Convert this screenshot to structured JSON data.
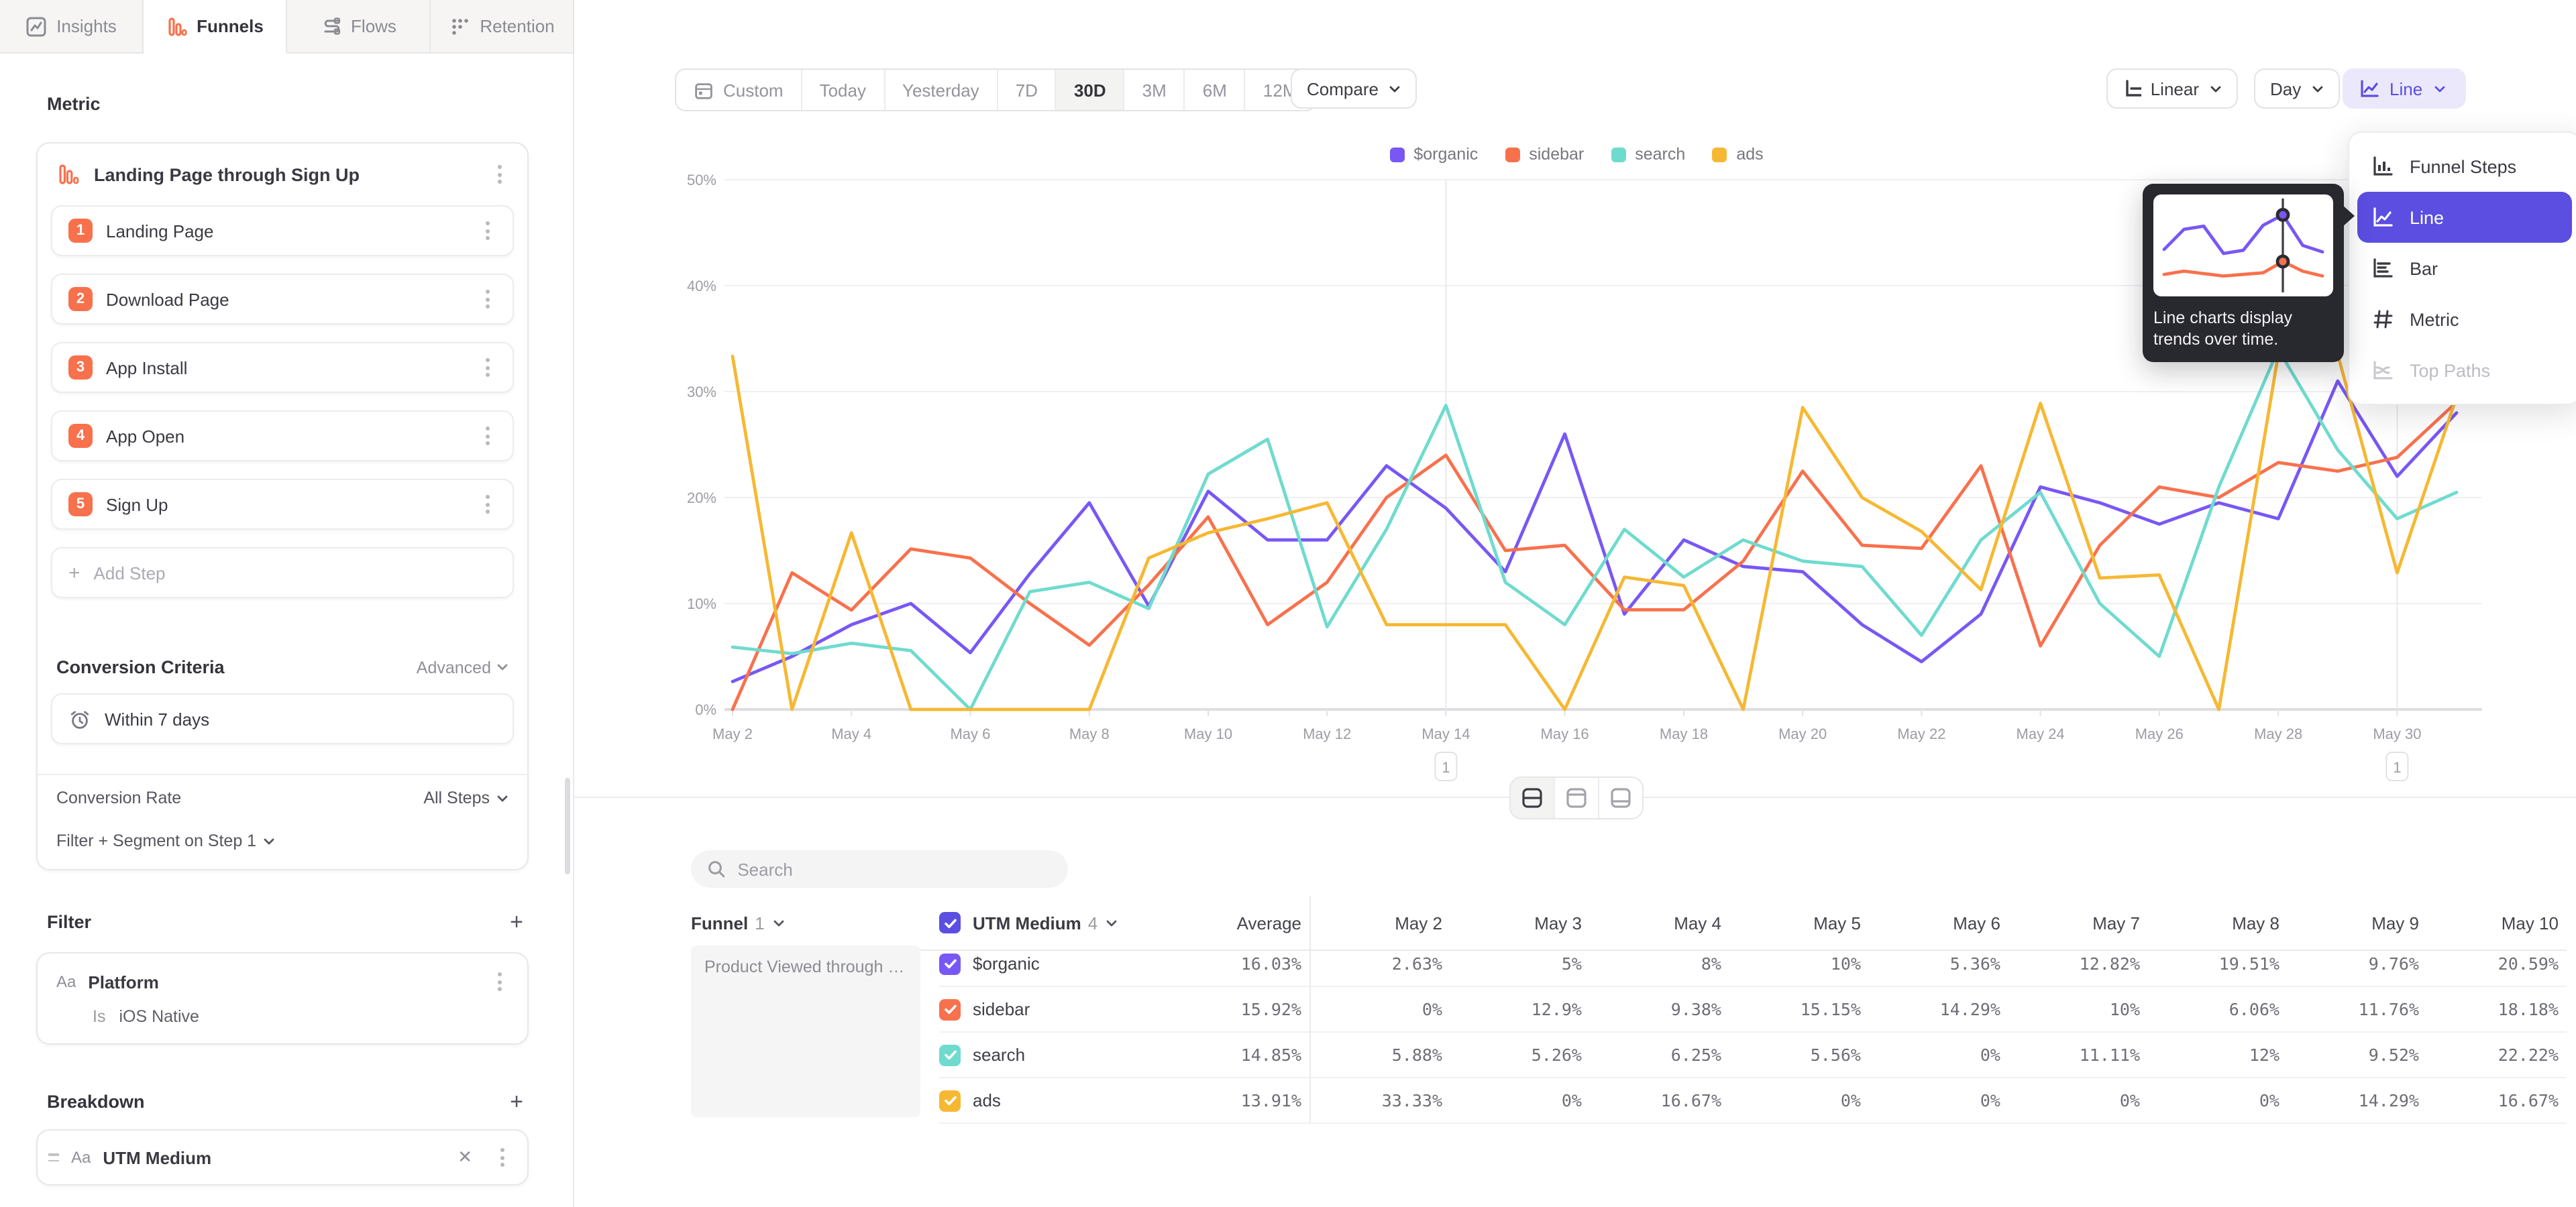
{
  "tabs": [
    {
      "label": "Insights",
      "active": false
    },
    {
      "label": "Funnels",
      "active": true
    },
    {
      "label": "Flows",
      "active": false
    },
    {
      "label": "Retention",
      "active": false
    }
  ],
  "sidebar": {
    "metric_label": "Metric",
    "metric": {
      "title": "Landing Page through Sign Up",
      "steps": [
        {
          "num": "1",
          "label": "Landing Page"
        },
        {
          "num": "2",
          "label": "Download Page"
        },
        {
          "num": "3",
          "label": "App Install"
        },
        {
          "num": "4",
          "label": "App Open"
        },
        {
          "num": "5",
          "label": "Sign Up"
        }
      ],
      "add_step_label": "Add Step",
      "conversion_criteria_label": "Conversion Criteria",
      "advanced_label": "Advanced",
      "window_label": "Within 7 days",
      "conversion_rate_label": "Conversion Rate",
      "conversion_rate_value": "All Steps",
      "filter_segment_label": "Filter + Segment on Step 1"
    },
    "filter": {
      "heading": "Filter",
      "card": {
        "type_badge": "Aa",
        "name": "Platform",
        "operator": "Is",
        "value": "iOS Native"
      }
    },
    "breakdown": {
      "heading": "Breakdown",
      "card": {
        "type_badge": "Aa",
        "name": "UTM Medium"
      }
    }
  },
  "toolbar": {
    "ranges": [
      "Custom",
      "Today",
      "Yesterday",
      "7D",
      "30D",
      "3M",
      "6M",
      "12M"
    ],
    "active_range": "30D",
    "compare_label": "Compare",
    "scale_label": "Linear",
    "granularity_label": "Day",
    "view_label": "Line"
  },
  "chart_data": {
    "type": "line",
    "title": "",
    "xlabel": "",
    "ylabel": "",
    "ylim": [
      0,
      50
    ],
    "y_tick_step": 10,
    "y_tick_suffix": "%",
    "grid": true,
    "legend_position": "top",
    "tick_every": 2,
    "x": [
      "May 2",
      "May 3",
      "May 4",
      "May 5",
      "May 6",
      "May 7",
      "May 8",
      "May 9",
      "May 10",
      "May 11",
      "May 12",
      "May 13",
      "May 14",
      "May 15",
      "May 16",
      "May 17",
      "May 18",
      "May 19",
      "May 20",
      "May 21",
      "May 22",
      "May 23",
      "May 24",
      "May 25",
      "May 26",
      "May 27",
      "May 28",
      "May 29",
      "May 30",
      "May 31"
    ],
    "series": [
      {
        "name": "$organic",
        "color": "#7857F5",
        "values": [
          2.63,
          5,
          8,
          10,
          5.36,
          12.82,
          19.51,
          9.76,
          20.59,
          16,
          16,
          23,
          19,
          13,
          26,
          9,
          16,
          13.5,
          13,
          8,
          4.5,
          9,
          21,
          19.5,
          17.5,
          19.5,
          18,
          31,
          22,
          28
        ]
      },
      {
        "name": "sidebar",
        "color": "#F8714D",
        "values": [
          0,
          12.9,
          9.38,
          15.15,
          14.29,
          10,
          6.06,
          11.76,
          18.18,
          8,
          12,
          20,
          24,
          15,
          15.5,
          9.4,
          9.4,
          14,
          22.5,
          15.5,
          15.2,
          23,
          6,
          15.5,
          21,
          20,
          23.3,
          22.5,
          23.8,
          29
        ]
      },
      {
        "name": "search",
        "color": "#6FDBCE",
        "values": [
          5.88,
          5.26,
          6.25,
          5.56,
          0,
          11.11,
          12,
          9.52,
          22.22,
          25.5,
          7.8,
          17,
          28.7,
          12,
          8,
          17,
          12.5,
          16,
          14,
          13.5,
          7,
          16,
          20.5,
          10,
          5,
          21,
          34,
          24.5,
          18,
          20.5
        ]
      },
      {
        "name": "ads",
        "color": "#F6B833",
        "values": [
          33.33,
          0,
          16.67,
          0,
          0,
          0,
          0,
          14.29,
          16.67,
          18,
          19.5,
          8,
          8,
          8,
          0,
          12.5,
          11.7,
          0,
          28.5,
          20,
          16.8,
          11.3,
          28.9,
          12.4,
          12.7,
          0,
          33.5,
          33.5,
          12.9,
          29.5
        ]
      }
    ],
    "annotations": [
      {
        "index": 12,
        "label": "1"
      },
      {
        "index": 28,
        "label": "1"
      }
    ]
  },
  "view_menu": {
    "items": [
      {
        "label": "Funnel Steps",
        "icon": "funnel-steps-icon",
        "state": "normal"
      },
      {
        "label": "Line",
        "icon": "line-icon",
        "state": "selected"
      },
      {
        "label": "Bar",
        "icon": "bar-icon",
        "state": "normal"
      },
      {
        "label": "Metric",
        "icon": "metric-icon",
        "state": "normal"
      },
      {
        "label": "Top Paths",
        "icon": "top-paths-icon",
        "state": "disabled"
      }
    ]
  },
  "tooltip": {
    "text": "Line charts display trends over time.",
    "mini": {
      "purple": [
        55,
        30,
        26,
        60,
        56,
        25,
        12,
        50,
        58
      ],
      "orange": [
        86,
        82,
        85,
        88,
        86,
        84,
        70,
        82,
        88
      ],
      "crosshair_index": 6
    }
  },
  "layout_toggles": [
    {
      "name": "split-view",
      "active": true
    },
    {
      "name": "chart-top-view",
      "active": false
    },
    {
      "name": "chart-bottom-view",
      "active": false
    }
  ],
  "table": {
    "search_placeholder": "Search",
    "funnel_col": {
      "label": "Funnel",
      "count": "1"
    },
    "breakdown_col": {
      "label": "UTM Medium",
      "count": "4"
    },
    "funnel_cell": "Product Viewed through P...",
    "columns": [
      "Average",
      "May 2",
      "May 3",
      "May 4",
      "May 5",
      "May 6",
      "May 7",
      "May 8",
      "May 9",
      "May 10"
    ],
    "rows": [
      {
        "name": "$organic",
        "color": "#7857F5",
        "values": [
          "16.03%",
          "2.63%",
          "5%",
          "8%",
          "10%",
          "5.36%",
          "12.82%",
          "19.51%",
          "9.76%",
          "20.59%"
        ]
      },
      {
        "name": "sidebar",
        "color": "#F8714D",
        "values": [
          "15.92%",
          "0%",
          "12.9%",
          "9.38%",
          "15.15%",
          "14.29%",
          "10%",
          "6.06%",
          "11.76%",
          "18.18%"
        ]
      },
      {
        "name": "search",
        "color": "#6FDBCE",
        "values": [
          "14.85%",
          "5.88%",
          "5.26%",
          "6.25%",
          "5.56%",
          "0%",
          "11.11%",
          "12%",
          "9.52%",
          "22.22%"
        ]
      },
      {
        "name": "ads",
        "color": "#F6B833",
        "values": [
          "13.91%",
          "33.33%",
          "0%",
          "16.67%",
          "0%",
          "0%",
          "0%",
          "0%",
          "14.29%",
          "16.67%"
        ]
      }
    ]
  },
  "colors": {
    "accent": "#5B4EE0",
    "brand_orange": "#F8714D"
  }
}
